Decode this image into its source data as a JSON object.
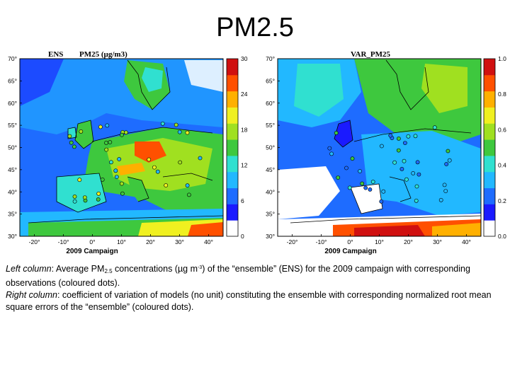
{
  "slide": {
    "title": "PM2.5"
  },
  "caption": {
    "left_label": "Left column",
    "left_pre": ": Average PM",
    "left_sub": "2.5",
    "left_mid": " concentrations (µg m",
    "left_sup": "-3",
    "left_post": ") of the “ensemble” (ENS) for the 2009 campaign with corresponding observations (coloured dots).",
    "right_label": "Right column",
    "right_text": ": coefficient of variation of models (no unit) constituting the ensemble with corresponding normalized root mean square errors of the “ensemble” (coloured dots)."
  },
  "chart_data": [
    {
      "type": "heatmap",
      "title_left": "ENS",
      "title_right": "PM25 (µg/m3)",
      "xlabel": "2009 Campaign",
      "x_ticks": [
        "-20°",
        "-10°",
        "0°",
        "10°",
        "20°",
        "30°",
        "40°"
      ],
      "y_ticks": [
        "70°",
        "65°",
        "60°",
        "55°",
        "50°",
        "45°",
        "40°",
        "35°",
        "30°"
      ],
      "colorbar_ticks": [
        "30",
        "24",
        "18",
        "12",
        "6",
        "0"
      ],
      "colorbar_range": [
        0,
        30
      ],
      "colors": [
        "#ffffff",
        "#1a1aff",
        "#1e6cff",
        "#22b8ff",
        "#30e0d0",
        "#3ec83e",
        "#a0e020",
        "#f0f020",
        "#ffb000",
        "#ff5000",
        "#d01010"
      ]
    },
    {
      "type": "heatmap",
      "title": "VAR_PM25",
      "xlabel": "2009 Campaign",
      "x_ticks": [
        "-20°",
        "-10°",
        "0°",
        "10°",
        "20°",
        "30°",
        "40°"
      ],
      "y_ticks": [
        "70°",
        "65°",
        "60°",
        "55°",
        "50°",
        "45°",
        "40°",
        "35°",
        "30°"
      ],
      "colorbar_ticks": [
        "1.0",
        "0.8",
        "0.6",
        "0.4",
        "0.2",
        "0.0"
      ],
      "colorbar_range": [
        0,
        1
      ],
      "colors": [
        "#ffffff",
        "#1a1aff",
        "#1e6cff",
        "#22b8ff",
        "#30e0d0",
        "#3ec83e",
        "#a0e020",
        "#f0f020",
        "#ffb000",
        "#ff5000",
        "#d01010"
      ]
    }
  ]
}
